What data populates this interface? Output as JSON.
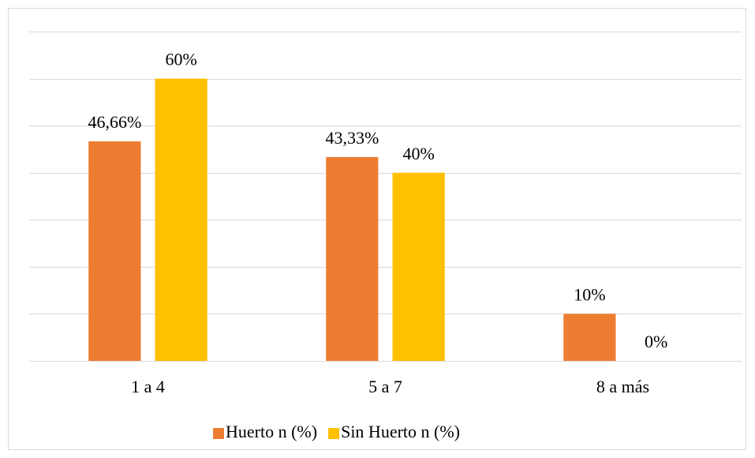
{
  "chart_data": {
    "type": "bar",
    "categories": [
      "1 a 4",
      "5 a 7",
      "8 a más"
    ],
    "series": [
      {
        "name": "Huerto n (%)",
        "color": "#ED7D31",
        "values": [
          46.66,
          43.33,
          10
        ],
        "value_labels": [
          "46,66%",
          "43,33%",
          "10%"
        ]
      },
      {
        "name": "Sin Huerto n (%)",
        "color": "#FFC000",
        "values": [
          60,
          40,
          0
        ],
        "value_labels": [
          "60%",
          "40%",
          "0%"
        ]
      }
    ],
    "ylim": [
      0,
      70
    ],
    "yticks": [
      0,
      10,
      20,
      30,
      40,
      50,
      60,
      70
    ],
    "grid": true,
    "legend": "bottom"
  }
}
